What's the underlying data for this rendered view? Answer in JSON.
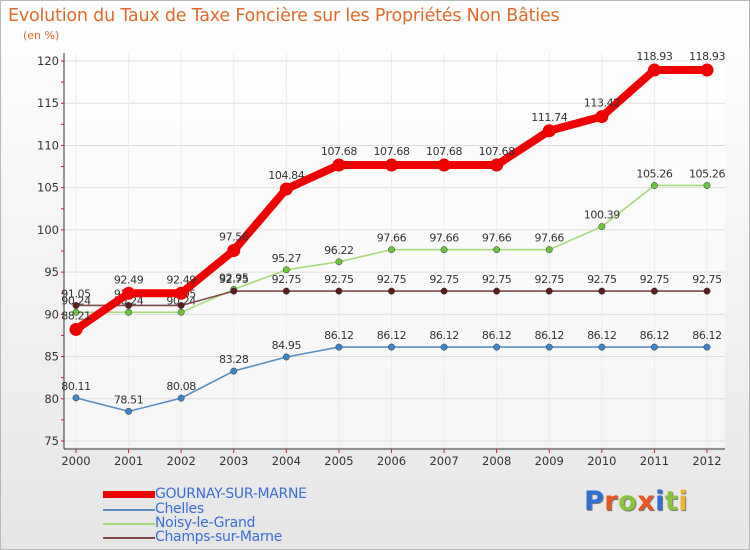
{
  "title": "Evolution du Taux de Taxe Foncière sur les Propriétés Non Bâties",
  "subtitle": "(en %)",
  "logo": {
    "letters": [
      "P",
      "r",
      "o",
      "x",
      "i",
      "t",
      "i"
    ],
    "colors": [
      "#2f6fd1",
      "#e8571f",
      "#8ac43f",
      "#e8571f",
      "#2f6fd1",
      "#8ac43f",
      "#f2b134"
    ]
  },
  "chart_data": {
    "type": "line",
    "x": [
      "2000",
      "2001",
      "2002",
      "2003",
      "2004",
      "2005",
      "2006",
      "2007",
      "2008",
      "2009",
      "2010",
      "2011",
      "2012"
    ],
    "ylim": [
      75,
      120
    ],
    "yticks": [
      "75",
      "80",
      "85",
      "90",
      "95",
      "100",
      "105",
      "110",
      "115",
      "120"
    ],
    "grid": true,
    "legend_position": "bottom-left",
    "series": [
      {
        "name": "Chelles",
        "color": "#5b8ec2",
        "marker": "#3d86c9",
        "values": [
          80.11,
          78.51,
          80.08,
          83.28,
          84.95,
          86.12,
          86.12,
          86.12,
          86.12,
          86.12,
          86.12,
          86.12,
          86.12
        ],
        "labels": [
          "80.11",
          "78.51",
          "80.08",
          "83.28",
          "84.95",
          "86.12",
          "86.12",
          "86.12",
          "86.12",
          "86.12",
          "86.12",
          "86.12",
          "86.12"
        ]
      },
      {
        "name": "Noisy-le-Grand",
        "color": "#a6db7c",
        "marker": "#6cc43d",
        "values": [
          90.24,
          90.24,
          90.24,
          92.95,
          95.27,
          96.22,
          97.66,
          97.66,
          97.66,
          97.66,
          100.39,
          105.26,
          105.26
        ],
        "labels": [
          "90.24",
          "90.24",
          "90.24",
          "92.95",
          "95.27",
          "96.22",
          "97.66",
          "97.66",
          "97.66",
          "97.66",
          "100.39",
          "105.26",
          "105.26"
        ]
      },
      {
        "name": "Champs-sur-Marne",
        "color": "#7e4a4a",
        "marker": "#5a1e1e",
        "values": [
          91.05,
          91.05,
          91.05,
          92.75,
          92.75,
          92.75,
          92.75,
          92.75,
          92.75,
          92.75,
          92.75,
          92.75,
          92.75
        ],
        "labels": [
          "91.05",
          "91.05",
          "91.05",
          "92.75",
          "92.75",
          "92.75",
          "92.75",
          "92.75",
          "92.75",
          "92.75",
          "92.75",
          "92.75",
          "92.75"
        ]
      },
      {
        "name": "GOURNAY-SUR-MARNE",
        "color": "#ee0000",
        "marker": "#ee0000",
        "values": [
          88.21,
          92.49,
          92.49,
          97.56,
          104.84,
          107.68,
          107.68,
          107.68,
          107.68,
          111.74,
          113.42,
          118.93,
          118.93
        ],
        "labels": [
          "88.21",
          "92.49",
          "92.49",
          "97.56",
          "104.84",
          "107.68",
          "107.68",
          "107.68",
          "107.68",
          "111.74",
          "113.42",
          "118.93",
          "118.93"
        ]
      }
    ]
  }
}
